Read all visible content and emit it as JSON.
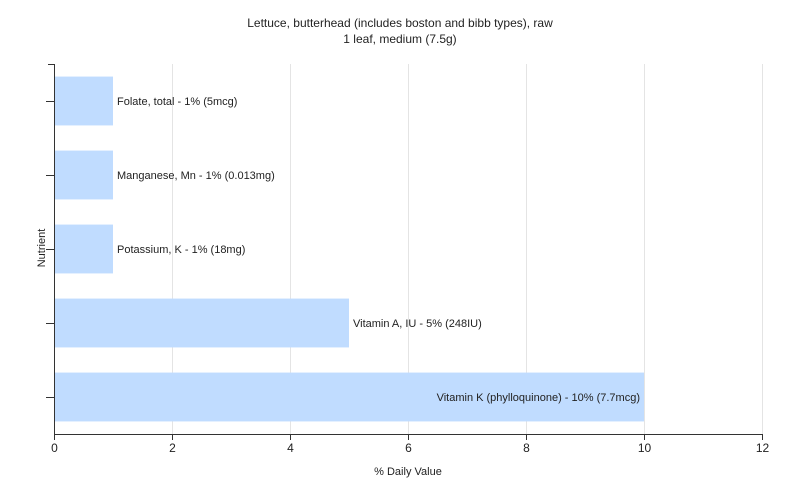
{
  "chart_data": {
    "type": "bar",
    "orientation": "horizontal",
    "title": "Lettuce, butterhead (includes boston and bibb types), raw",
    "subtitle": "1 leaf, medium (7.5g)",
    "xlabel": "% Daily Value",
    "ylabel": "Nutrient",
    "xlim": [
      0,
      12
    ],
    "xticks": [
      0,
      2,
      4,
      6,
      8,
      10,
      12
    ],
    "grid": "vertical",
    "bar_color": "#c0dcff",
    "categories": [
      "Folate, total - 1% (5mcg)",
      "Manganese, Mn - 1% (0.013mg)",
      "Potassium, K - 1% (18mg)",
      "Vitamin A, IU - 5% (248IU)",
      "Vitamin K (phylloquinone) - 10% (7.7mcg)"
    ],
    "values": [
      1,
      1,
      1,
      5,
      10
    ]
  }
}
